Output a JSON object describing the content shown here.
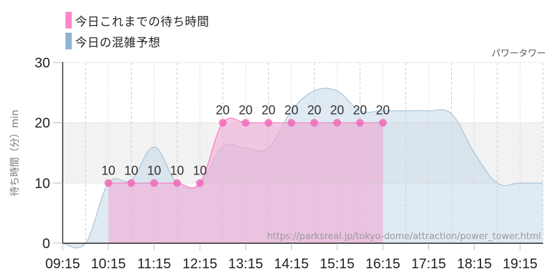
{
  "legend": [
    {
      "label": "今日これまでの待ち時間",
      "color": "#ff88cc"
    },
    {
      "label": "今日の混雑予想",
      "color": "#8fb3d1"
    }
  ],
  "attraction_name": "パワータワー",
  "watermark": "https://parksreal.jp/tokyo-dome/attraction/power_tower.html",
  "colors": {
    "actual_fill": "#f0a8d6",
    "actual_line": "#ff66bb",
    "actual_dot": "#f06ab8",
    "forecast_fill": "#c6d8e8",
    "forecast_line": "#9dbcd6",
    "band": "#f2f2f2"
  },
  "chart_data": {
    "type": "area",
    "title": "パワータワー",
    "xlabel": "",
    "ylabel": "待ち時間（分）min",
    "ylim": [
      0,
      30
    ],
    "yticks": [
      0,
      10,
      20,
      30
    ],
    "xticks": [
      "09:15",
      "10:15",
      "11:15",
      "12:15",
      "13:15",
      "14:15",
      "15:15",
      "16:15",
      "17:15",
      "18:15",
      "19:15"
    ],
    "grid": true,
    "legend_position": "top-left",
    "series": [
      {
        "name": "今日これまでの待ち時間",
        "type": "area-line-markers",
        "x": [
          "10:15",
          "10:45",
          "11:15",
          "11:45",
          "12:15",
          "12:45",
          "13:15",
          "13:45",
          "14:15",
          "14:45",
          "15:15",
          "15:45",
          "16:15"
        ],
        "values": [
          10,
          10,
          10,
          10,
          10,
          20,
          20,
          20,
          20,
          20,
          20,
          20,
          20
        ],
        "data_labels": true
      },
      {
        "name": "今日の混雑予想",
        "type": "area",
        "x": [
          "09:15",
          "09:45",
          "10:15",
          "10:45",
          "11:15",
          "11:45",
          "12:15",
          "12:45",
          "13:15",
          "13:45",
          "14:15",
          "14:45",
          "15:15",
          "15:45",
          "16:15",
          "16:45",
          "17:15",
          "17:45",
          "18:15",
          "18:45",
          "19:15",
          "19:45"
        ],
        "values": [
          0,
          0,
          10,
          10.5,
          16,
          10,
          9.8,
          16,
          15.8,
          15.8,
          22,
          25.3,
          25.3,
          22,
          22,
          22,
          22,
          21.5,
          15,
          10,
          10,
          10
        ]
      }
    ]
  }
}
